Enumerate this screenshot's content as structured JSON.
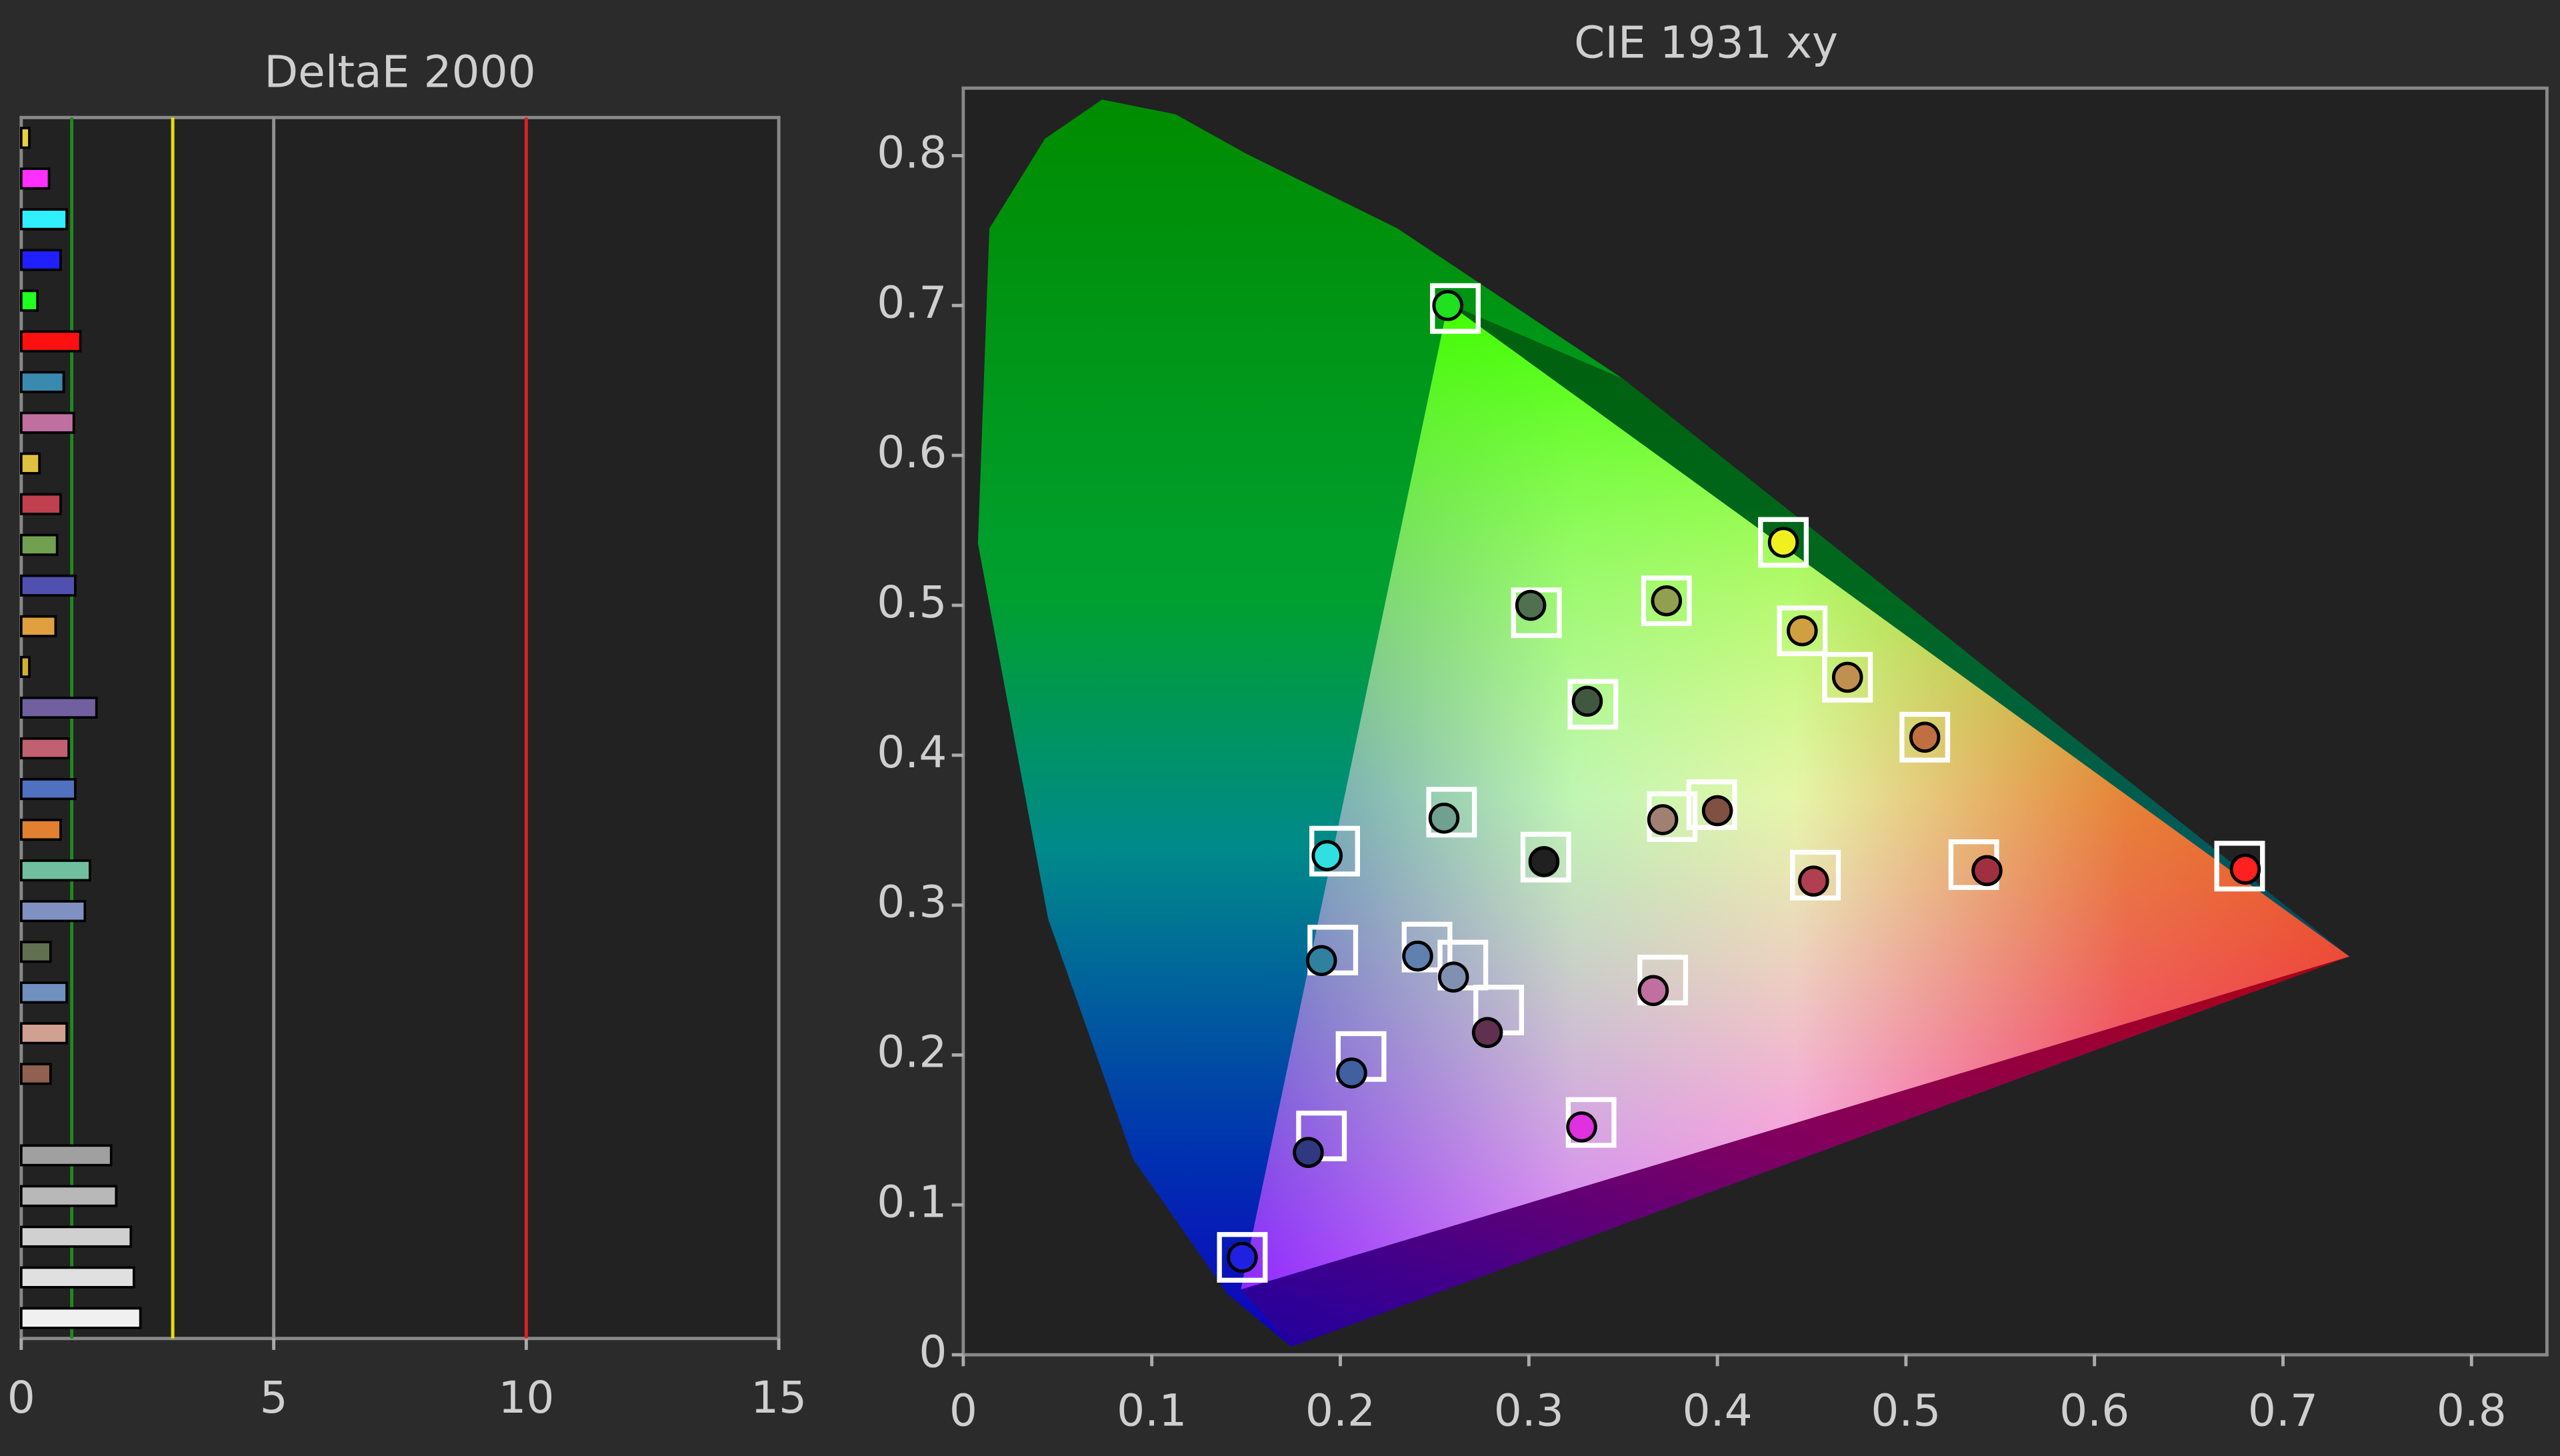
{
  "chart_data": [
    {
      "type": "bar",
      "orientation": "horizontal",
      "title": "DeltaE 2000",
      "categories": [
        null,
        null,
        null,
        null,
        null,
        null,
        null,
        null,
        null,
        null,
        null,
        null,
        null,
        null,
        null,
        null,
        null,
        null,
        null,
        null,
        null,
        null,
        null,
        null,
        null,
        null,
        null,
        null,
        null,
        null
      ],
      "values": [
        0.16,
        0.55,
        0.9,
        0.78,
        0.32,
        1.17,
        0.84,
        1.04,
        0.36,
        0.78,
        0.71,
        1.07,
        0.68,
        0.16,
        1.49,
        0.94,
        1.07,
        0.78,
        1.36,
        1.26,
        0.58,
        0.9,
        0.9,
        0.58,
        null,
        1.78,
        1.88,
        2.17,
        2.23,
        2.36
      ],
      "colors": [
        "#e8d040",
        "#ff30ff",
        "#30f0ff",
        "#2020ff",
        "#20ff20",
        "#ff1010",
        "#3a8ab0",
        "#c070a0",
        "#e0c040",
        "#c04050",
        "#70a050",
        "#5050b0",
        "#e0a040",
        "#d0b030",
        "#7060a0",
        "#c06070",
        "#5070c0",
        "#e08030",
        "#70c0a0",
        "#8090c0",
        "#607050",
        "#7090c0",
        "#d0a090",
        "#906050",
        null,
        "#a0a0a0",
        "#b8b8b8",
        "#d0d0d0",
        "#e0e0e0",
        "#f0f0f0"
      ],
      "xlim": [
        0,
        15
      ],
      "xticks": [
        0,
        5,
        10,
        15
      ],
      "reference_lines": [
        {
          "value": 1,
          "color": "#1f8a1f"
        },
        {
          "value": 3,
          "color": "#e8e000"
        },
        {
          "value": 5,
          "color": "#909090"
        },
        {
          "value": 10,
          "color": "#e02020"
        }
      ]
    },
    {
      "type": "scatter",
      "title": "CIE 1931 xy",
      "xlim": [
        0,
        0.84
      ],
      "ylim": [
        0,
        0.845
      ],
      "xticks": [
        0,
        0.1,
        0.2,
        0.3,
        0.4,
        0.5,
        0.6,
        0.7,
        0.8
      ],
      "yticks": [
        0,
        0.1,
        0.2,
        0.3,
        0.4,
        0.5,
        0.6,
        0.7,
        0.8
      ],
      "series": [
        {
          "marker": "square",
          "color": "#ffffff",
          "x": [
            0.261,
            0.435,
            0.304,
            0.373,
            0.445,
            0.469,
            0.334,
            0.51,
            0.259,
            0.397,
            0.376,
            0.197,
            0.309,
            0.452,
            0.536,
            0.677,
            0.196,
            0.246,
            0.265,
            0.371,
            0.284,
            0.211,
            0.333,
            0.19,
            0.148
          ],
          "y": [
            0.698,
            0.542,
            0.495,
            0.503,
            0.483,
            0.452,
            0.434,
            0.412,
            0.362,
            0.367,
            0.359,
            0.336,
            0.332,
            0.32,
            0.327,
            0.326,
            0.27,
            0.272,
            0.26,
            0.25,
            0.23,
            0.199,
            0.155,
            0.146,
            0.065
          ]
        },
        {
          "marker": "circle",
          "colors": [
            "#20e020",
            "#f0f020",
            "#507050",
            "#90a050",
            "#d0a040",
            "#c09050",
            "#405840",
            "#c07040",
            "#70a090",
            "#805040",
            "#a08070",
            "#30e0e0",
            "#202020",
            "#b04050",
            "#a03040",
            "#ff2020",
            "#3080a0",
            "#6080b0",
            "#8090b0",
            "#c070a0",
            "#603050",
            "#4060a0",
            "#e030e0",
            "#303880",
            "#2020e0"
          ],
          "x": [
            0.257,
            0.435,
            0.301,
            0.373,
            0.445,
            0.469,
            0.331,
            0.51,
            0.255,
            0.4,
            0.371,
            0.193,
            0.308,
            0.451,
            0.543,
            0.68,
            0.19,
            0.241,
            0.26,
            0.366,
            0.278,
            0.206,
            0.328,
            0.183,
            0.148
          ],
          "y": [
            0.7,
            0.542,
            0.5,
            0.503,
            0.483,
            0.452,
            0.436,
            0.412,
            0.358,
            0.363,
            0.357,
            0.333,
            0.329,
            0.316,
            0.323,
            0.324,
            0.263,
            0.266,
            0.252,
            0.243,
            0.215,
            0.188,
            0.152,
            0.135,
            0.065
          ]
        }
      ]
    }
  ]
}
